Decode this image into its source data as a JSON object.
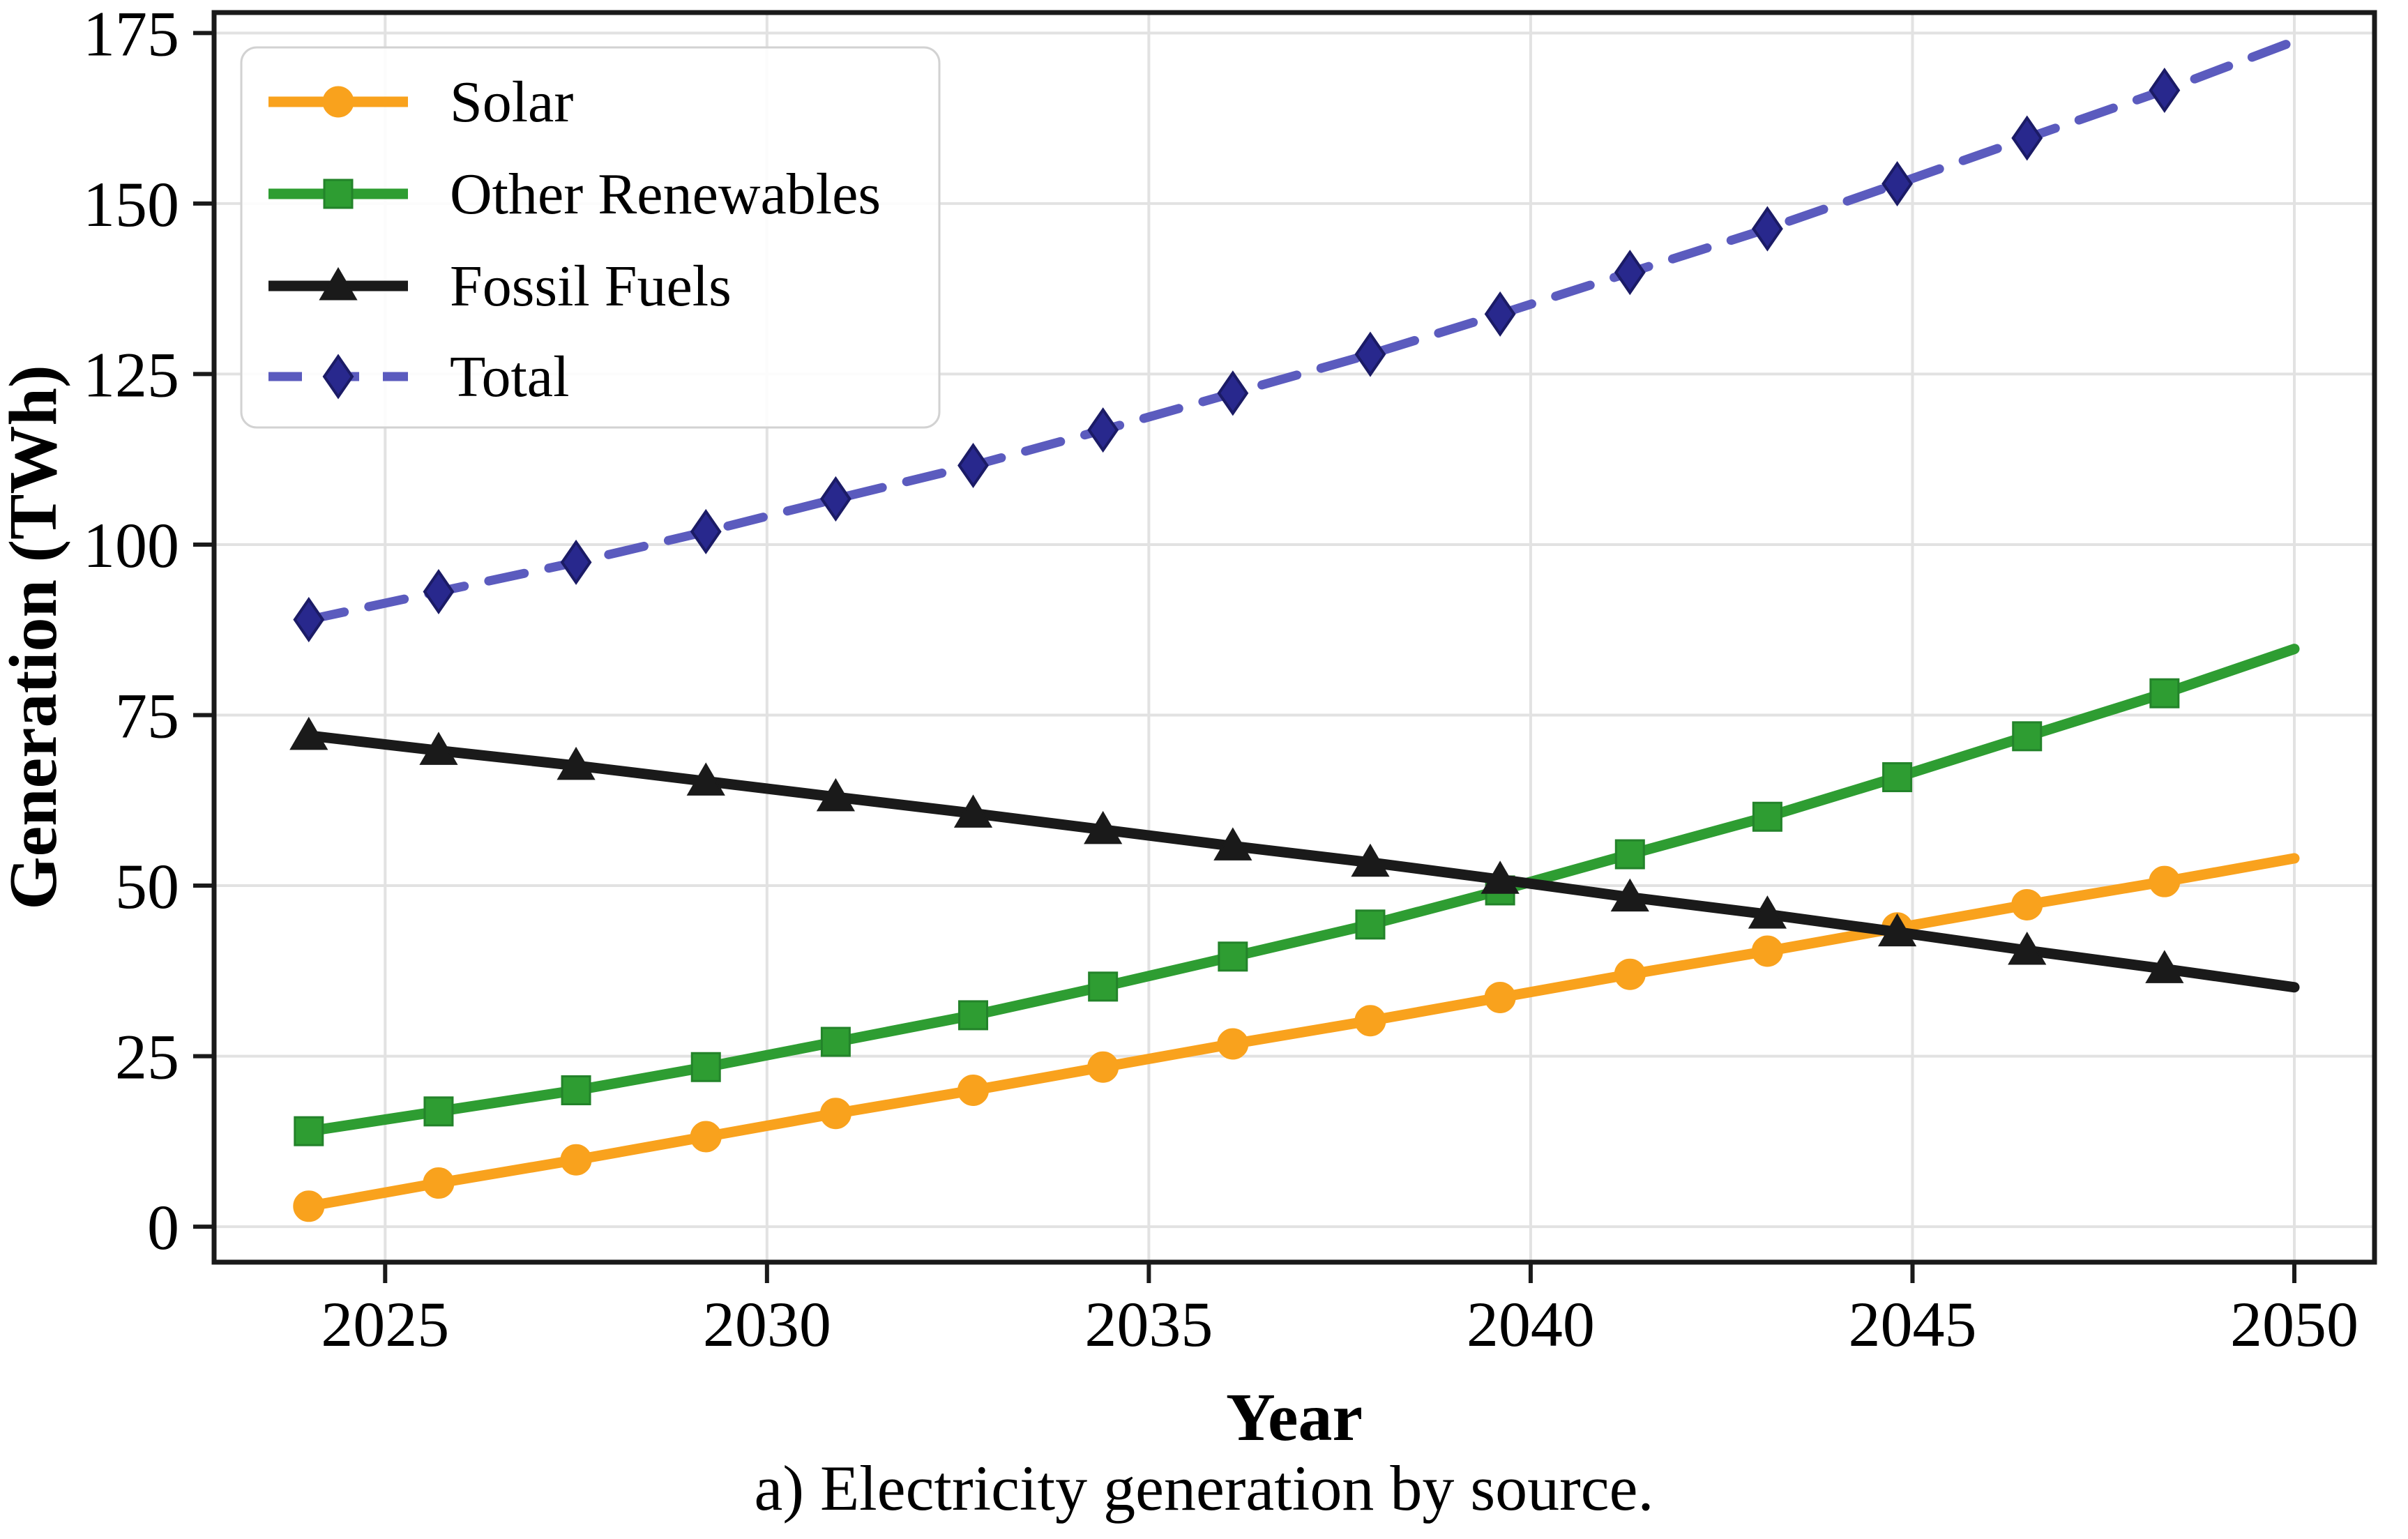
{
  "figure": {
    "caption": "a) Electricity generation by source.",
    "background": "#ffffff"
  },
  "chart_data": {
    "type": "line",
    "title": "",
    "xlabel": "Year",
    "ylabel": "Generation (TWh)",
    "x": [
      2024.0,
      2025.7,
      2027.5,
      2029.2,
      2030.9,
      2032.7,
      2034.4,
      2036.1,
      2037.9,
      2039.6,
      2041.3,
      2043.1,
      2044.8,
      2046.5,
      2048.3,
      2050.0
    ],
    "series": [
      {
        "name": "Solar",
        "color": "#F9A21D",
        "marker": "circle",
        "marker_fill": "#F9A21D",
        "marker_edge": "#F9A21D",
        "line_style": "solid",
        "values": [
          3.0,
          6.4,
          9.8,
          13.2,
          16.6,
          20.0,
          23.4,
          26.8,
          30.2,
          33.6,
          37.0,
          40.4,
          43.8,
          47.2,
          50.6,
          54.0
        ]
      },
      {
        "name": "Other Renewables",
        "color": "#2E9D32",
        "marker": "square",
        "marker_fill": "#2E9D32",
        "marker_edge": "#23832a",
        "line_style": "solid",
        "values": [
          14.0,
          16.9,
          20.0,
          23.4,
          27.1,
          31.0,
          35.2,
          39.6,
          44.3,
          49.3,
          54.6,
          60.1,
          65.9,
          71.9,
          78.2,
          84.7
        ]
      },
      {
        "name": "Fossil Fuels",
        "color": "#1A1A1A",
        "marker": "triangle",
        "marker_fill": "#1A1A1A",
        "marker_edge": "#1A1A1A",
        "line_style": "solid",
        "values": [
          72.0,
          69.8,
          67.6,
          65.3,
          63.0,
          60.6,
          58.2,
          55.8,
          53.4,
          50.9,
          48.3,
          45.8,
          43.2,
          40.5,
          37.8,
          35.1
        ]
      },
      {
        "name": "Total",
        "color": "#5B5BBE",
        "marker": "diamond",
        "marker_fill": "#28288D",
        "marker_edge": "#1B1B66",
        "line_style": "dashed",
        "values": [
          89.0,
          93.1,
          97.4,
          101.9,
          106.7,
          111.6,
          116.8,
          122.2,
          127.9,
          133.8,
          139.9,
          146.3,
          152.9,
          159.6,
          166.6,
          173.8
        ]
      }
    ],
    "xticks": [
      2025,
      2030,
      2035,
      2040,
      2045,
      2050
    ],
    "yticks": [
      0,
      25,
      50,
      75,
      100,
      125,
      150,
      175
    ],
    "xlim": [
      2022.76,
      2051.05
    ],
    "ylim": [
      -5.2,
      178.0
    ],
    "grid": true,
    "grid_color": "#e2e2e2",
    "frame_color": "#1a1a1a",
    "legend_position": "upper-left",
    "marker_skip_last": true
  }
}
